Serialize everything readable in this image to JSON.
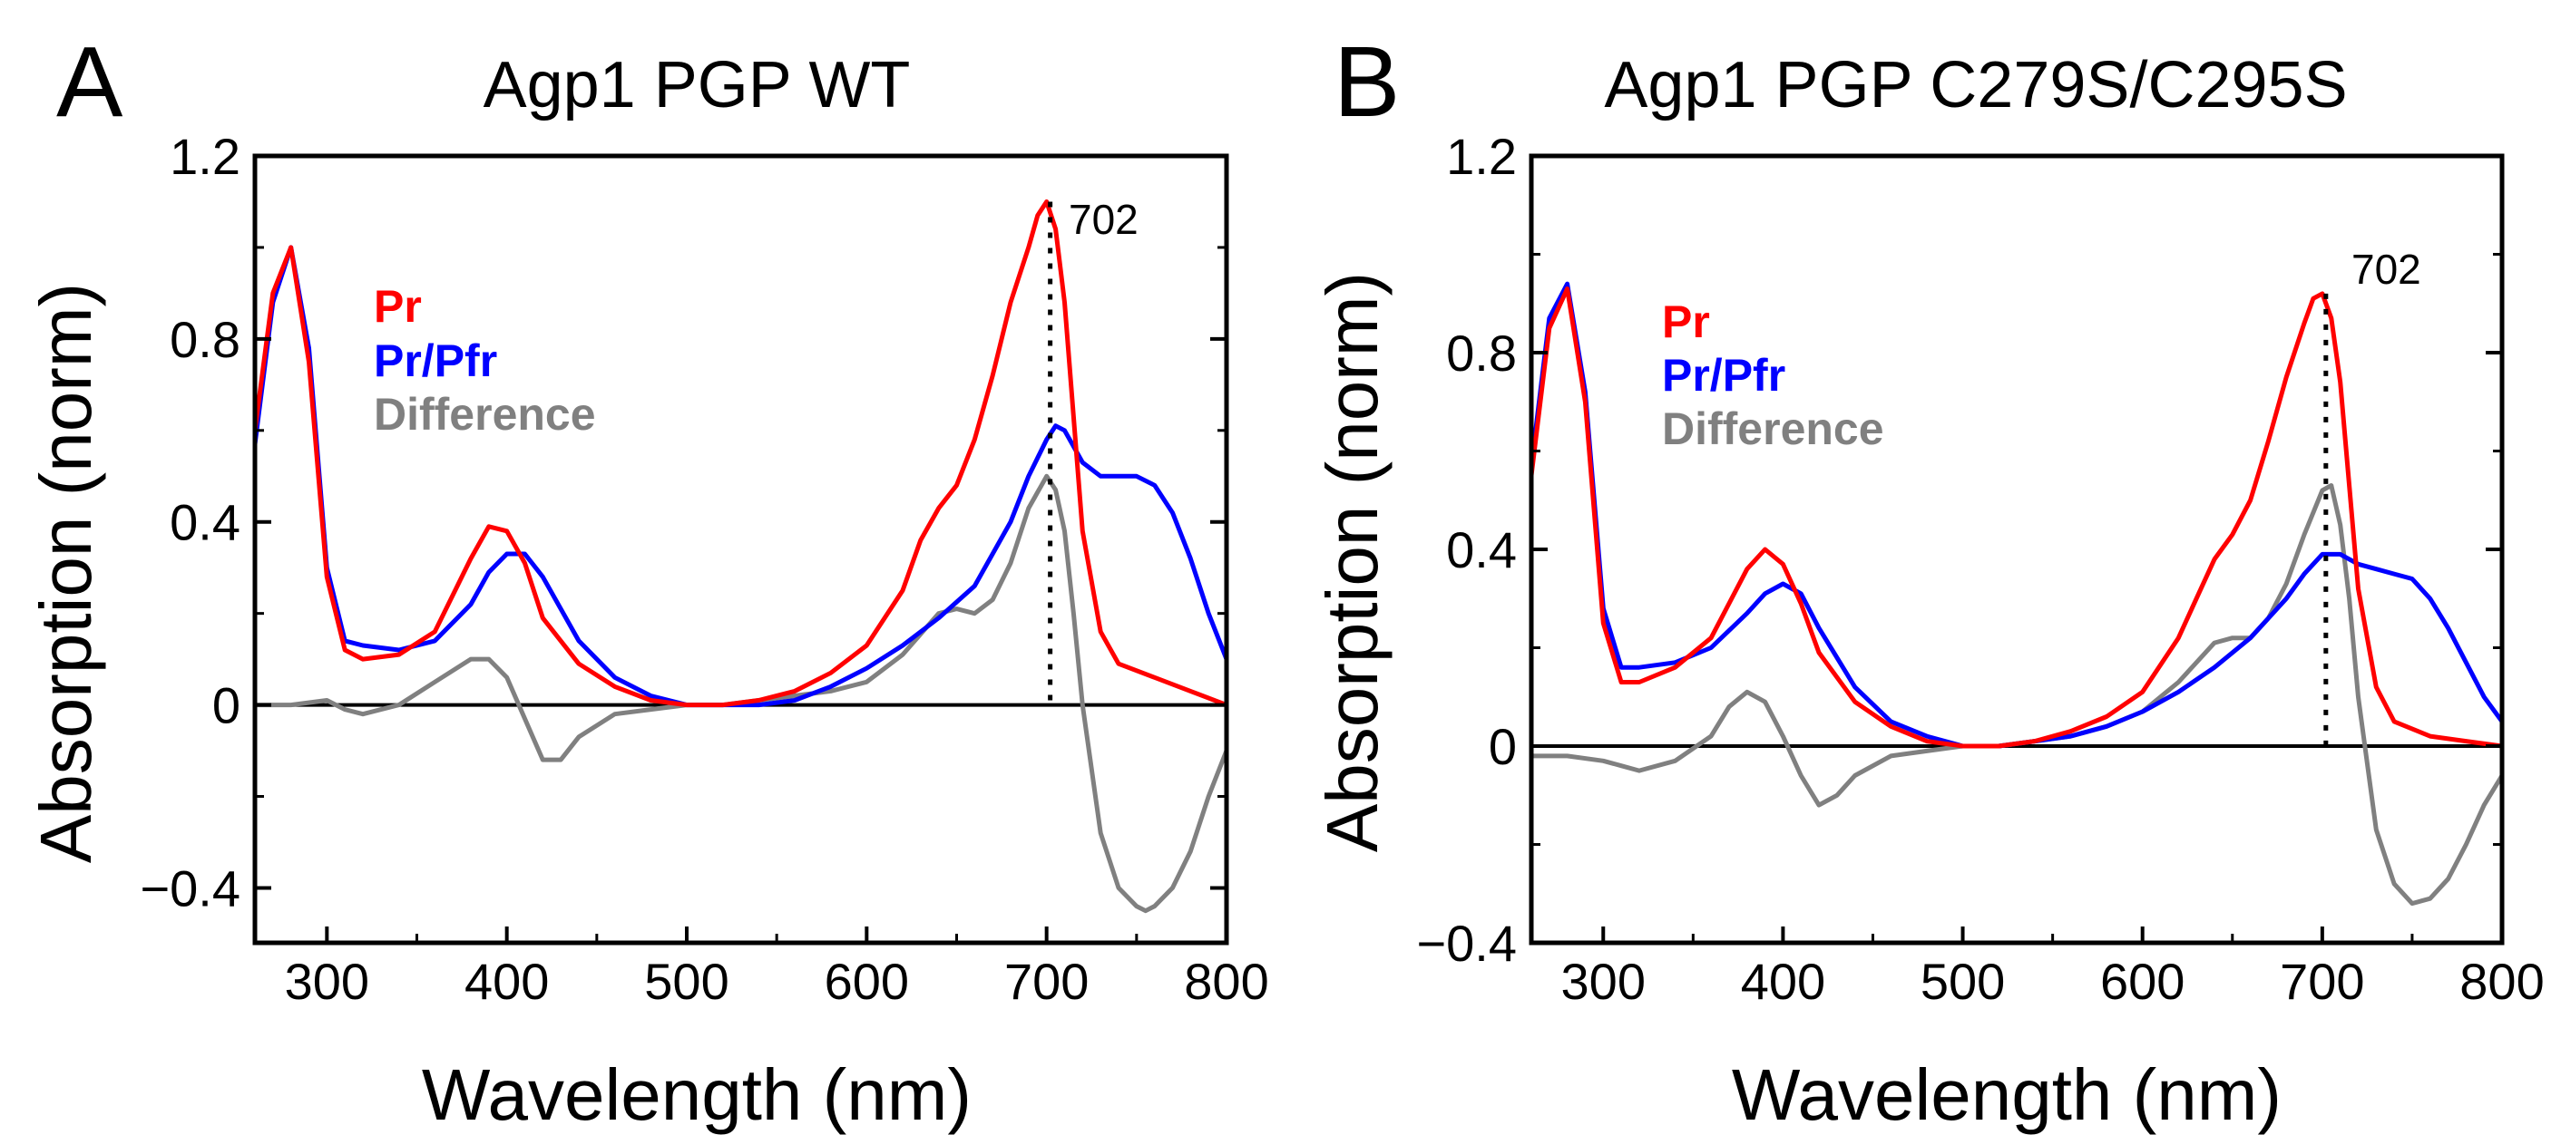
{
  "chart_data": [
    {
      "type": "line",
      "panel_label": "A",
      "title": "Agp1 PGP WT",
      "xlabel": "Wavelength (nm)",
      "ylabel": "Absorption (norm)",
      "xlim": [
        260,
        800
      ],
      "ylim": [
        -0.52,
        1.2
      ],
      "xticks": [
        300,
        400,
        500,
        600,
        700,
        800
      ],
      "yticks": [
        -0.4,
        0,
        0.4,
        0.8,
        1.2
      ],
      "ytick_labels": [
        "−0.4",
        "0",
        "0.4",
        "0.8",
        "1.2"
      ],
      "peak_marker": {
        "x": 702,
        "y": 1.1,
        "label": "702"
      },
      "series": [
        {
          "name": "Pr",
          "color": "#ff0000",
          "x": [
            260,
            270,
            280,
            290,
            300,
            310,
            320,
            340,
            360,
            380,
            390,
            400,
            410,
            420,
            440,
            460,
            480,
            500,
            520,
            540,
            560,
            580,
            600,
            620,
            630,
            640,
            650,
            660,
            670,
            680,
            690,
            695,
            700,
            705,
            710,
            715,
            720,
            730,
            740,
            760,
            780,
            800
          ],
          "y": [
            0.6,
            0.9,
            1.0,
            0.75,
            0.28,
            0.12,
            0.1,
            0.11,
            0.16,
            0.32,
            0.39,
            0.38,
            0.31,
            0.19,
            0.09,
            0.04,
            0.01,
            0.0,
            0.0,
            0.01,
            0.03,
            0.07,
            0.13,
            0.25,
            0.36,
            0.43,
            0.48,
            0.58,
            0.72,
            0.88,
            1.0,
            1.07,
            1.1,
            1.04,
            0.88,
            0.63,
            0.38,
            0.16,
            0.09,
            0.06,
            0.03,
            0.0
          ]
        },
        {
          "name": "Pr/Pfr",
          "color": "#0000ff",
          "x": [
            260,
            270,
            280,
            290,
            300,
            310,
            320,
            340,
            360,
            380,
            390,
            400,
            410,
            420,
            440,
            460,
            480,
            500,
            520,
            540,
            560,
            580,
            600,
            620,
            640,
            660,
            680,
            690,
            700,
            705,
            710,
            720,
            730,
            740,
            750,
            760,
            770,
            780,
            790,
            800
          ],
          "y": [
            0.57,
            0.88,
            1.0,
            0.78,
            0.3,
            0.14,
            0.13,
            0.12,
            0.14,
            0.22,
            0.29,
            0.33,
            0.33,
            0.28,
            0.14,
            0.06,
            0.02,
            0.0,
            0.0,
            0.0,
            0.01,
            0.04,
            0.08,
            0.13,
            0.19,
            0.26,
            0.4,
            0.5,
            0.58,
            0.61,
            0.6,
            0.53,
            0.5,
            0.5,
            0.5,
            0.48,
            0.42,
            0.32,
            0.2,
            0.1
          ]
        },
        {
          "name": "Difference",
          "color": "#808080",
          "x": [
            260,
            280,
            300,
            310,
            320,
            340,
            360,
            380,
            390,
            400,
            410,
            420,
            430,
            440,
            460,
            480,
            500,
            520,
            540,
            560,
            580,
            600,
            620,
            640,
            650,
            660,
            670,
            680,
            690,
            700,
            705,
            710,
            715,
            720,
            730,
            740,
            750,
            755,
            760,
            770,
            780,
            790,
            800
          ],
          "y": [
            0.0,
            0.0,
            0.01,
            -0.01,
            -0.02,
            0.0,
            0.05,
            0.1,
            0.1,
            0.06,
            -0.03,
            -0.12,
            -0.12,
            -0.07,
            -0.02,
            -0.01,
            0.0,
            0.0,
            0.01,
            0.02,
            0.03,
            0.05,
            0.11,
            0.2,
            0.21,
            0.2,
            0.23,
            0.31,
            0.43,
            0.5,
            0.47,
            0.38,
            0.2,
            0.0,
            -0.28,
            -0.4,
            -0.44,
            -0.45,
            -0.44,
            -0.4,
            -0.32,
            -0.2,
            -0.1
          ]
        }
      ],
      "legend": {
        "placement": "upper-left",
        "entries": [
          "Pr",
          "Pr/Pfr",
          "Difference"
        ]
      }
    },
    {
      "type": "line",
      "panel_label": "B",
      "title": "Agp1 PGP C279S/C295S",
      "xlabel": "Wavelength (nm)",
      "ylabel": "Absorption (norm)",
      "xlim": [
        260,
        800
      ],
      "ylim": [
        -0.4,
        1.2
      ],
      "xticks": [
        300,
        400,
        500,
        600,
        700,
        800
      ],
      "yticks": [
        -0.4,
        0,
        0.4,
        0.8,
        1.2
      ],
      "ytick_labels": [
        "−0.4",
        "0",
        "0.4",
        "0.8",
        "1.2"
      ],
      "peak_marker": {
        "x": 702,
        "y": 0.92,
        "label": "702"
      },
      "series": [
        {
          "name": "Pr",
          "color": "#ff0000",
          "x": [
            260,
            270,
            280,
            290,
            300,
            310,
            320,
            340,
            360,
            380,
            390,
            400,
            410,
            420,
            440,
            460,
            480,
            500,
            520,
            540,
            560,
            580,
            600,
            620,
            630,
            640,
            650,
            660,
            670,
            680,
            690,
            695,
            700,
            705,
            710,
            715,
            720,
            730,
            740,
            760,
            780,
            800
          ],
          "y": [
            0.55,
            0.85,
            0.93,
            0.7,
            0.25,
            0.13,
            0.13,
            0.16,
            0.22,
            0.36,
            0.4,
            0.37,
            0.29,
            0.19,
            0.09,
            0.04,
            0.01,
            0.0,
            0.0,
            0.01,
            0.03,
            0.06,
            0.11,
            0.22,
            0.3,
            0.38,
            0.43,
            0.5,
            0.62,
            0.75,
            0.86,
            0.91,
            0.92,
            0.87,
            0.74,
            0.53,
            0.32,
            0.12,
            0.05,
            0.02,
            0.01,
            0.0
          ]
        },
        {
          "name": "Pr/Pfr",
          "color": "#0000ff",
          "x": [
            260,
            270,
            280,
            290,
            300,
            310,
            320,
            340,
            360,
            380,
            390,
            400,
            410,
            420,
            440,
            460,
            480,
            500,
            520,
            540,
            560,
            580,
            600,
            620,
            640,
            660,
            680,
            690,
            700,
            710,
            720,
            730,
            740,
            750,
            760,
            770,
            780,
            790,
            800
          ],
          "y": [
            0.57,
            0.87,
            0.94,
            0.72,
            0.28,
            0.16,
            0.16,
            0.17,
            0.2,
            0.27,
            0.31,
            0.33,
            0.31,
            0.24,
            0.12,
            0.05,
            0.02,
            0.0,
            0.0,
            0.01,
            0.02,
            0.04,
            0.07,
            0.11,
            0.16,
            0.22,
            0.3,
            0.35,
            0.39,
            0.39,
            0.37,
            0.36,
            0.35,
            0.34,
            0.3,
            0.24,
            0.17,
            0.1,
            0.05
          ]
        },
        {
          "name": "Difference",
          "color": "#808080",
          "x": [
            260,
            280,
            300,
            310,
            320,
            340,
            360,
            370,
            380,
            390,
            400,
            410,
            420,
            430,
            440,
            460,
            480,
            500,
            520,
            540,
            560,
            580,
            600,
            620,
            640,
            650,
            660,
            670,
            680,
            690,
            700,
            705,
            710,
            715,
            720,
            730,
            740,
            750,
            760,
            770,
            780,
            790,
            800
          ],
          "y": [
            -0.02,
            -0.02,
            -0.03,
            -0.04,
            -0.05,
            -0.03,
            0.02,
            0.08,
            0.11,
            0.09,
            0.02,
            -0.06,
            -0.12,
            -0.1,
            -0.06,
            -0.02,
            -0.01,
            0.0,
            0.0,
            0.01,
            0.02,
            0.04,
            0.07,
            0.13,
            0.21,
            0.22,
            0.22,
            0.26,
            0.33,
            0.43,
            0.52,
            0.53,
            0.45,
            0.3,
            0.1,
            -0.17,
            -0.28,
            -0.32,
            -0.31,
            -0.27,
            -0.2,
            -0.12,
            -0.06
          ]
        }
      ],
      "legend": {
        "placement": "upper-left",
        "entries": [
          "Pr",
          "Pr/Pfr",
          "Difference"
        ]
      }
    }
  ]
}
